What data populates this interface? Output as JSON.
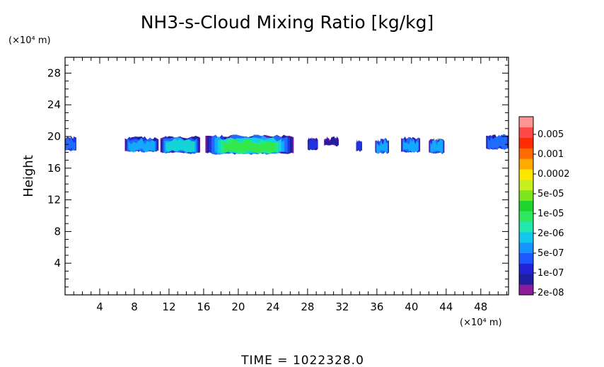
{
  "chart_data": {
    "type": "heatmap",
    "title": "NH3-s-Cloud Mixing Ratio [kg/kg]",
    "xlabel": "",
    "ylabel": "Height",
    "x_unit": "(×10⁴ m)",
    "y_unit": "(×10⁴ m)",
    "xlim": [
      0,
      51.2
    ],
    "ylim": [
      0,
      30
    ],
    "x_ticks": [
      4,
      8,
      12,
      16,
      20,
      24,
      28,
      32,
      36,
      40,
      44,
      48
    ],
    "y_ticks": [
      4,
      8,
      12,
      16,
      20,
      24,
      28
    ],
    "footer": "TIME = 1022328.0",
    "colorbar": {
      "labels": [
        "0.005",
        "0.001",
        "0.0002",
        "5e-05",
        "1e-05",
        "2e-06",
        "5e-07",
        "1e-07",
        "2e-08"
      ],
      "colors_bottom_to_top": [
        "#8b1a9c",
        "#1f1fa0",
        "#2222d6",
        "#1e56ff",
        "#1594ff",
        "#12c8ee",
        "#22e8b0",
        "#30e860",
        "#1ed42e",
        "#7ce61c",
        "#c8f01e",
        "#ffe600",
        "#ffaa00",
        "#ff6a00",
        "#ff2a00",
        "#ff4848",
        "#ff9494"
      ]
    },
    "cloud_cells": [
      {
        "x0": 0.0,
        "x1": 1.3,
        "y0": 18.3,
        "y1": 19.8,
        "level": 3
      },
      {
        "x0": 6.9,
        "x1": 10.8,
        "y0": 18.2,
        "y1": 19.7,
        "level": 4
      },
      {
        "x0": 11.0,
        "x1": 15.6,
        "y0": 18.0,
        "y1": 19.8,
        "level": 5
      },
      {
        "x0": 16.2,
        "x1": 26.4,
        "y0": 17.9,
        "y1": 20.0,
        "level": 7
      },
      {
        "x0": 28.0,
        "x1": 29.2,
        "y0": 18.4,
        "y1": 19.6,
        "level": 2
      },
      {
        "x0": 29.9,
        "x1": 31.6,
        "y0": 18.9,
        "y1": 19.7,
        "level": 1
      },
      {
        "x0": 33.6,
        "x1": 34.3,
        "y0": 18.2,
        "y1": 19.3,
        "level": 2
      },
      {
        "x0": 35.8,
        "x1": 37.4,
        "y0": 18.0,
        "y1": 19.5,
        "level": 4
      },
      {
        "x0": 38.8,
        "x1": 41.0,
        "y0": 18.1,
        "y1": 19.7,
        "level": 4
      },
      {
        "x0": 42.0,
        "x1": 43.8,
        "y0": 18.0,
        "y1": 19.5,
        "level": 4
      },
      {
        "x0": 48.6,
        "x1": 51.2,
        "y0": 18.5,
        "y1": 20.0,
        "level": 3
      }
    ]
  }
}
